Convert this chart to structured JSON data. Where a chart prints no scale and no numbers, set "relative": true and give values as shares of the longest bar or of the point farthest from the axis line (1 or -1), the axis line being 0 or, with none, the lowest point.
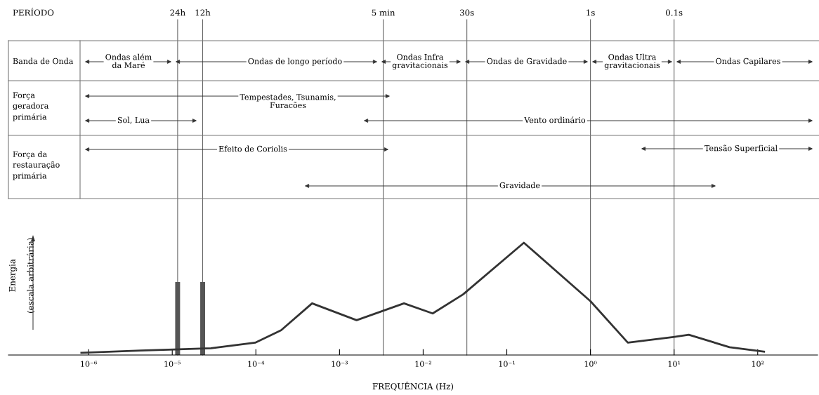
{
  "chart_data": [
    {
      "type": "other",
      "annotations": [
        "Banda de Onda",
        "Força\ngeradora\nprimária",
        "Força da\nrestauração\nprimária",
        "Ondas além\nda Maré",
        "Ondas de longo período",
        "Ondas Infra\ngravitacionais",
        "Ondas de Gravidade",
        "Ondas Ultra\ngravitacionais",
        "Ondas Capilares",
        "Tempestades, Tsunamis,\nFuracões",
        "Sol, Lua",
        "Vento ordinário",
        "Efeito de Coriolis",
        "Tensão Superficial",
        "Gravidade"
      ]
    },
    {
      "type": "line",
      "relative": true,
      "xlabel": "FREQUÊNCIA (Hz)",
      "ylabel": "Energia\n(escala arbitrária)",
      "log": "x",
      "xlim": [
        1.1e-07,
        520
      ],
      "xticks": [
        {
          "value": 1e-06,
          "label": "10⁻⁶"
        },
        {
          "value": 1e-05,
          "label": "10⁻⁵"
        },
        {
          "value": 0.0001,
          "label": "10⁻⁴"
        },
        {
          "value": 0.001,
          "label": "10⁻³"
        },
        {
          "value": 0.01,
          "label": "10⁻²"
        },
        {
          "value": 0.1,
          "label": "10⁻¹"
        },
        {
          "value": 1,
          "label": "10⁰"
        },
        {
          "value": 10,
          "label": "10¹"
        },
        {
          "value": 100,
          "label": "10²"
        }
      ],
      "annotations": [
        "PERÍODO"
      ],
      "ref_lines": [
        {
          "axis": "x",
          "value": 1.16e-05,
          "label": "24h"
        },
        {
          "axis": "x",
          "value": 2.31e-05,
          "label": "12h"
        },
        {
          "axis": "x",
          "value": 0.00333,
          "label": "5 min"
        },
        {
          "axis": "x",
          "value": 0.0333,
          "label": "30s"
        },
        {
          "axis": "x",
          "value": 1,
          "label": "1s"
        },
        {
          "axis": "x",
          "value": 10,
          "label": "0.1s"
        }
      ],
      "series": [
        {
          "type": "line",
          "color": "#333333",
          "x": [
            8.2e-07,
            4.2e-06,
            2.9e-05,
            9.8e-05,
            0.0002,
            0.00047,
            0.0016,
            0.0059,
            0.013,
            0.03,
            0.16,
            1.0,
            2.8,
            9.8,
            15,
            46,
            119
          ],
          "values": [
            0.02,
            0.04,
            0.06,
            0.11,
            0.22,
            0.46,
            0.31,
            0.46,
            0.37,
            0.54,
            1.0,
            0.48,
            0.11,
            0.16,
            0.18,
            0.07,
            0.03
          ]
        },
        {
          "type": "bar",
          "color": "#555555",
          "x": [
            1.16e-05,
            2.31e-05
          ],
          "values": [
            0.65,
            0.65
          ]
        }
      ]
    }
  ]
}
